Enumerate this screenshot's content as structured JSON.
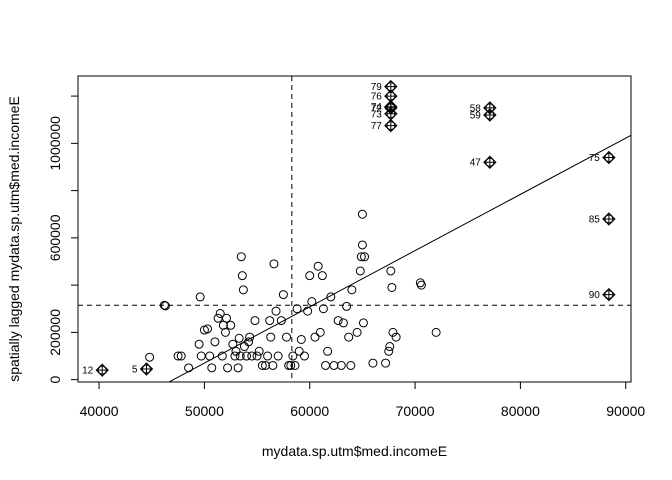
{
  "chart_data": {
    "type": "scatter",
    "title": "",
    "xlabel": "mydata.sp.utm$med.incomeE",
    "ylabel": "spatially lagged mydata.sp.utm$med.incomeE",
    "xlim": [
      38000,
      90500
    ],
    "ylim": [
      -10000,
      1285000
    ],
    "x_ticks": [
      40000,
      50000,
      60000,
      70000,
      80000,
      90000
    ],
    "y_ticks": [
      0,
      200000,
      600000,
      1000000
    ],
    "mean_x": 58300,
    "mean_y": 315000,
    "regression_line": {
      "intercept": -1120000,
      "slope": 23.8
    },
    "grid": false,
    "points": [
      {
        "x": 44800,
        "y": 95000
      },
      {
        "x": 46200,
        "y": 315000
      },
      {
        "x": 46300,
        "y": 312000
      },
      {
        "x": 47500,
        "y": 100000
      },
      {
        "x": 47800,
        "y": 100000
      },
      {
        "x": 48500,
        "y": 50000
      },
      {
        "x": 49500,
        "y": 150000
      },
      {
        "x": 49600,
        "y": 350000
      },
      {
        "x": 49700,
        "y": 100000
      },
      {
        "x": 50000,
        "y": 210000
      },
      {
        "x": 50300,
        "y": 215000
      },
      {
        "x": 50500,
        "y": 100000
      },
      {
        "x": 50700,
        "y": 50000
      },
      {
        "x": 51000,
        "y": 160000
      },
      {
        "x": 51300,
        "y": 260000
      },
      {
        "x": 51500,
        "y": 280000
      },
      {
        "x": 51700,
        "y": 100000
      },
      {
        "x": 51800,
        "y": 230000
      },
      {
        "x": 52000,
        "y": 200000
      },
      {
        "x": 52100,
        "y": 260000
      },
      {
        "x": 52200,
        "y": 50000
      },
      {
        "x": 52500,
        "y": 230000
      },
      {
        "x": 52700,
        "y": 150000
      },
      {
        "x": 52900,
        "y": 100000
      },
      {
        "x": 53000,
        "y": 120000
      },
      {
        "x": 53200,
        "y": 50000
      },
      {
        "x": 53300,
        "y": 175000
      },
      {
        "x": 53400,
        "y": 100000
      },
      {
        "x": 53500,
        "y": 520000
      },
      {
        "x": 53600,
        "y": 440000
      },
      {
        "x": 53700,
        "y": 380000
      },
      {
        "x": 53800,
        "y": 140000
      },
      {
        "x": 54000,
        "y": 100000
      },
      {
        "x": 54200,
        "y": 160000
      },
      {
        "x": 54300,
        "y": 180000
      },
      {
        "x": 54500,
        "y": 100000
      },
      {
        "x": 54800,
        "y": 250000
      },
      {
        "x": 55000,
        "y": 100000
      },
      {
        "x": 55200,
        "y": 120000
      },
      {
        "x": 55500,
        "y": 60000
      },
      {
        "x": 55800,
        "y": 60000
      },
      {
        "x": 56000,
        "y": 100000
      },
      {
        "x": 56200,
        "y": 250000
      },
      {
        "x": 56300,
        "y": 180000
      },
      {
        "x": 56500,
        "y": 60000
      },
      {
        "x": 56600,
        "y": 490000
      },
      {
        "x": 56800,
        "y": 290000
      },
      {
        "x": 57000,
        "y": 100000
      },
      {
        "x": 57300,
        "y": 250000
      },
      {
        "x": 57500,
        "y": 360000
      },
      {
        "x": 57800,
        "y": 180000
      },
      {
        "x": 58000,
        "y": 60000
      },
      {
        "x": 58200,
        "y": 60000
      },
      {
        "x": 58400,
        "y": 100000
      },
      {
        "x": 58600,
        "y": 60000
      },
      {
        "x": 58800,
        "y": 300000
      },
      {
        "x": 59000,
        "y": 120000
      },
      {
        "x": 59200,
        "y": 170000
      },
      {
        "x": 59500,
        "y": 100000
      },
      {
        "x": 59800,
        "y": 290000
      },
      {
        "x": 60000,
        "y": 440000
      },
      {
        "x": 60200,
        "y": 330000
      },
      {
        "x": 60500,
        "y": 180000
      },
      {
        "x": 60800,
        "y": 480000
      },
      {
        "x": 61000,
        "y": 200000
      },
      {
        "x": 61200,
        "y": 440000
      },
      {
        "x": 61300,
        "y": 300000
      },
      {
        "x": 61500,
        "y": 60000
      },
      {
        "x": 61700,
        "y": 120000
      },
      {
        "x": 62000,
        "y": 350000
      },
      {
        "x": 62300,
        "y": 60000
      },
      {
        "x": 62700,
        "y": 250000
      },
      {
        "x": 63000,
        "y": 60000
      },
      {
        "x": 63200,
        "y": 240000
      },
      {
        "x": 63500,
        "y": 310000
      },
      {
        "x": 63700,
        "y": 180000
      },
      {
        "x": 63900,
        "y": 60000
      },
      {
        "x": 64000,
        "y": 380000
      },
      {
        "x": 64500,
        "y": 200000
      },
      {
        "x": 64800,
        "y": 460000
      },
      {
        "x": 64900,
        "y": 520000
      },
      {
        "x": 65000,
        "y": 570000
      },
      {
        "x": 65000,
        "y": 700000
      },
      {
        "x": 65100,
        "y": 240000
      },
      {
        "x": 65200,
        "y": 520000
      },
      {
        "x": 66000,
        "y": 70000
      },
      {
        "x": 67200,
        "y": 70000
      },
      {
        "x": 67500,
        "y": 120000
      },
      {
        "x": 67600,
        "y": 140000
      },
      {
        "x": 67700,
        "y": 460000
      },
      {
        "x": 67800,
        "y": 390000
      },
      {
        "x": 67900,
        "y": 200000
      },
      {
        "x": 68200,
        "y": 180000
      },
      {
        "x": 70500,
        "y": 410000
      },
      {
        "x": 70600,
        "y": 400000
      },
      {
        "x": 72000,
        "y": 200000
      }
    ],
    "influential": [
      {
        "label": "12",
        "x": 40300,
        "y": 40000
      },
      {
        "label": "5",
        "x": 44500,
        "y": 45000
      },
      {
        "label": "79",
        "x": 67700,
        "y": 1240000
      },
      {
        "label": "76",
        "x": 67700,
        "y": 1200000
      },
      {
        "label": "74",
        "x": 67700,
        "y": 1155000
      },
      {
        "label": "72",
        "x": 67700,
        "y": 1150000
      },
      {
        "label": "73",
        "x": 67700,
        "y": 1125000
      },
      {
        "label": "77",
        "x": 67700,
        "y": 1075000
      },
      {
        "label": "58",
        "x": 77100,
        "y": 1150000
      },
      {
        "label": "59",
        "x": 77100,
        "y": 1120000
      },
      {
        "label": "47",
        "x": 77100,
        "y": 920000
      },
      {
        "label": "75",
        "x": 88400,
        "y": 940000
      },
      {
        "label": "85",
        "x": 88400,
        "y": 680000
      },
      {
        "label": "90",
        "x": 88400,
        "y": 360000
      }
    ]
  }
}
